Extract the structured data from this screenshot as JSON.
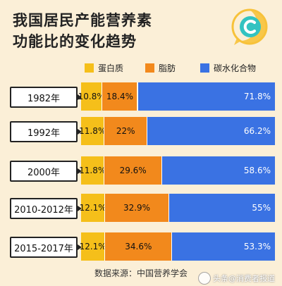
{
  "title_line1": "我国居民产能营养素",
  "title_line2": "功能比的变化趋势",
  "logo_icon": "logo-icon",
  "colors": {
    "protein": "#f5bf1a",
    "fat": "#f2891c",
    "carb": "#3a72e3",
    "background": "#fbefd7"
  },
  "source": "数据来源：中国营养学会",
  "watermark": "头条@消费者报道",
  "chart_data": {
    "type": "bar",
    "orientation": "horizontal",
    "stacked": true,
    "normalized": true,
    "title": "我国居民产能营养素功能比的变化趋势",
    "categories": [
      "1982年",
      "1992年",
      "2000年",
      "2010-2012年",
      "2015-2017年"
    ],
    "series": [
      {
        "name": "蛋白质",
        "color": "#f5bf1a",
        "values": [
          10.8,
          11.8,
          11.8,
          12.1,
          12.1
        ],
        "labels": [
          "10.8%",
          "11.8%",
          "11.8%",
          "12.1%",
          "12.1%"
        ]
      },
      {
        "name": "脂肪",
        "color": "#f2891c",
        "values": [
          18.4,
          22,
          29.6,
          32.9,
          34.6
        ],
        "labels": [
          "18.4%",
          "22%",
          "29.6%",
          "32.9%",
          "34.6%"
        ]
      },
      {
        "name": "碳水化合物",
        "color": "#3a72e3",
        "values": [
          71.8,
          66.2,
          58.6,
          55,
          53.3
        ],
        "labels": [
          "71.8%",
          "66.2%",
          "58.6%",
          "55%",
          "53.3%"
        ]
      }
    ],
    "legend": "top",
    "xlim": [
      0,
      100
    ],
    "unit": "%"
  }
}
